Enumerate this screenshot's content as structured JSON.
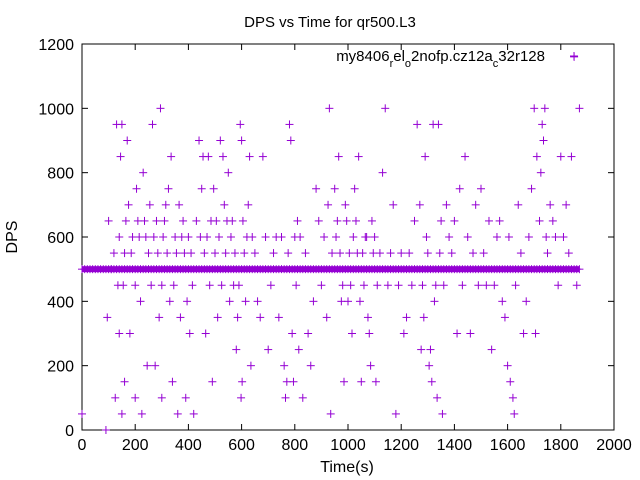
{
  "chart_data": {
    "type": "scatter",
    "title": "DPS vs Time for qr500.L3",
    "xlabel": "Time(s)",
    "ylabel": "DPS",
    "xlim": [
      0,
      2000
    ],
    "ylim": [
      0,
      1200
    ],
    "xticks": [
      0,
      200,
      400,
      600,
      800,
      1000,
      1200,
      1400,
      1600,
      1800,
      2000
    ],
    "yticks": [
      0,
      200,
      400,
      600,
      800,
      1000,
      1200
    ],
    "grid": false,
    "legend_position": "top-right",
    "marker": "plus",
    "series": [
      {
        "name_parts": [
          {
            "text": "my8406",
            "sub": false
          },
          {
            "text": "r",
            "sub": true
          },
          {
            "text": "el",
            "sub": false
          },
          {
            "text": "o",
            "sub": true
          },
          {
            "text": "2nofp.cz12a",
            "sub": false
          },
          {
            "text": "c",
            "sub": true
          },
          {
            "text": "32r128",
            "sub": false
          }
        ],
        "color": "#9400d3",
        "baseline": {
          "x_start": 0,
          "x_end": 1870,
          "y": 500
        },
        "points": [
          [
            0,
            50
          ],
          [
            90,
            0
          ],
          [
            95,
            350
          ],
          [
            100,
            650
          ],
          [
            110,
            500
          ],
          [
            120,
            550
          ],
          [
            125,
            100
          ],
          [
            130,
            950
          ],
          [
            135,
            450
          ],
          [
            140,
            300
          ],
          [
            140,
            600
          ],
          [
            145,
            850
          ],
          [
            150,
            950
          ],
          [
            150,
            50
          ],
          [
            155,
            450
          ],
          [
            160,
            550
          ],
          [
            160,
            150
          ],
          [
            165,
            650
          ],
          [
            170,
            900
          ],
          [
            175,
            700
          ],
          [
            180,
            300
          ],
          [
            185,
            550
          ],
          [
            190,
            600
          ],
          [
            200,
            450
          ],
          [
            200,
            100
          ],
          [
            205,
            750
          ],
          [
            210,
            650
          ],
          [
            215,
            600
          ],
          [
            220,
            400
          ],
          [
            225,
            50
          ],
          [
            230,
            800
          ],
          [
            235,
            650
          ],
          [
            240,
            600
          ],
          [
            245,
            200
          ],
          [
            250,
            550
          ],
          [
            255,
            700
          ],
          [
            260,
            450
          ],
          [
            265,
            950
          ],
          [
            270,
            600
          ],
          [
            275,
            200
          ],
          [
            280,
            650
          ],
          [
            285,
            550
          ],
          [
            290,
            350
          ],
          [
            295,
            1000
          ],
          [
            300,
            450
          ],
          [
            300,
            100
          ],
          [
            305,
            600
          ],
          [
            310,
            650
          ],
          [
            315,
            700
          ],
          [
            320,
            550
          ],
          [
            325,
            750
          ],
          [
            330,
            400
          ],
          [
            335,
            850
          ],
          [
            340,
            150
          ],
          [
            345,
            450
          ],
          [
            350,
            600
          ],
          [
            355,
            550
          ],
          [
            360,
            50
          ],
          [
            365,
            700
          ],
          [
            370,
            350
          ],
          [
            375,
            600
          ],
          [
            380,
            650
          ],
          [
            385,
            550
          ],
          [
            390,
            100
          ],
          [
            395,
            400
          ],
          [
            400,
            600
          ],
          [
            405,
            300
          ],
          [
            410,
            550
          ],
          [
            415,
            450
          ],
          [
            420,
            50
          ],
          [
            430,
            650
          ],
          [
            440,
            900
          ],
          [
            445,
            600
          ],
          [
            450,
            750
          ],
          [
            455,
            850
          ],
          [
            460,
            550
          ],
          [
            465,
            300
          ],
          [
            470,
            600
          ],
          [
            475,
            850
          ],
          [
            480,
            450
          ],
          [
            485,
            650
          ],
          [
            490,
            150
          ],
          [
            495,
            750
          ],
          [
            500,
            550
          ],
          [
            505,
            650
          ],
          [
            510,
            350
          ],
          [
            515,
            600
          ],
          [
            520,
            900
          ],
          [
            525,
            450
          ],
          [
            530,
            850
          ],
          [
            535,
            700
          ],
          [
            540,
            550
          ],
          [
            545,
            650
          ],
          [
            550,
            800
          ],
          [
            555,
            400
          ],
          [
            560,
            600
          ],
          [
            565,
            650
          ],
          [
            570,
            450
          ],
          [
            575,
            550
          ],
          [
            580,
            250
          ],
          [
            585,
            350
          ],
          [
            590,
            450
          ],
          [
            595,
            950
          ],
          [
            598,
            100
          ],
          [
            600,
            900
          ],
          [
            602,
            150
          ],
          [
            605,
            650
          ],
          [
            610,
            550
          ],
          [
            615,
            400
          ],
          [
            620,
            600
          ],
          [
            625,
            700
          ],
          [
            630,
            850
          ],
          [
            635,
            200
          ],
          [
            640,
            600
          ],
          [
            650,
            550
          ],
          [
            660,
            400
          ],
          [
            670,
            350
          ],
          [
            680,
            850
          ],
          [
            690,
            600
          ],
          [
            700,
            250
          ],
          [
            710,
            450
          ],
          [
            720,
            550
          ],
          [
            730,
            600
          ],
          [
            740,
            350
          ],
          [
            750,
            600
          ],
          [
            760,
            200
          ],
          [
            765,
            100
          ],
          [
            770,
            150
          ],
          [
            775,
            550
          ],
          [
            780,
            950
          ],
          [
            785,
            900
          ],
          [
            790,
            300
          ],
          [
            795,
            150
          ],
          [
            800,
            600
          ],
          [
            805,
            450
          ],
          [
            810,
            650
          ],
          [
            815,
            250
          ],
          [
            820,
            600
          ],
          [
            830,
            100
          ],
          [
            840,
            550
          ],
          [
            850,
            300
          ],
          [
            860,
            200
          ],
          [
            870,
            400
          ],
          [
            880,
            750
          ],
          [
            890,
            650
          ],
          [
            900,
            450
          ],
          [
            910,
            600
          ],
          [
            920,
            350
          ],
          [
            925,
            700
          ],
          [
            930,
            1000
          ],
          [
            935,
            50
          ],
          [
            940,
            550
          ],
          [
            950,
            750
          ],
          [
            955,
            600
          ],
          [
            960,
            650
          ],
          [
            965,
            850
          ],
          [
            970,
            550
          ],
          [
            975,
            400
          ],
          [
            980,
            450
          ],
          [
            985,
            150
          ],
          [
            990,
            700
          ],
          [
            995,
            650
          ],
          [
            1000,
            400
          ],
          [
            1005,
            550
          ],
          [
            1010,
            450
          ],
          [
            1015,
            300
          ],
          [
            1020,
            600
          ],
          [
            1025,
            750
          ],
          [
            1030,
            650
          ],
          [
            1035,
            550
          ],
          [
            1040,
            850
          ],
          [
            1045,
            400
          ],
          [
            1050,
            150
          ],
          [
            1055,
            550
          ],
          [
            1060,
            450
          ],
          [
            1065,
            600
          ],
          [
            1070,
            600
          ],
          [
            1075,
            350
          ],
          [
            1080,
            300
          ],
          [
            1085,
            200
          ],
          [
            1090,
            650
          ],
          [
            1095,
            550
          ],
          [
            1100,
            600
          ],
          [
            1105,
            150
          ],
          [
            1110,
            450
          ],
          [
            1120,
            550
          ],
          [
            1130,
            800
          ],
          [
            1140,
            1000
          ],
          [
            1150,
            450
          ],
          [
            1160,
            550
          ],
          [
            1170,
            700
          ],
          [
            1180,
            50
          ],
          [
            1190,
            450
          ],
          [
            1200,
            550
          ],
          [
            1210,
            300
          ],
          [
            1220,
            350
          ],
          [
            1230,
            550
          ],
          [
            1240,
            450
          ],
          [
            1250,
            650
          ],
          [
            1260,
            950
          ],
          [
            1270,
            700
          ],
          [
            1275,
            250
          ],
          [
            1280,
            450
          ],
          [
            1285,
            350
          ],
          [
            1290,
            850
          ],
          [
            1295,
            600
          ],
          [
            1300,
            550
          ],
          [
            1305,
            200
          ],
          [
            1310,
            250
          ],
          [
            1315,
            150
          ],
          [
            1320,
            950
          ],
          [
            1325,
            400
          ],
          [
            1330,
            450
          ],
          [
            1335,
            100
          ],
          [
            1340,
            950
          ],
          [
            1345,
            550
          ],
          [
            1350,
            650
          ],
          [
            1355,
            50
          ],
          [
            1360,
            450
          ],
          [
            1370,
            700
          ],
          [
            1380,
            600
          ],
          [
            1390,
            550
          ],
          [
            1400,
            650
          ],
          [
            1410,
            300
          ],
          [
            1420,
            750
          ],
          [
            1430,
            450
          ],
          [
            1440,
            850
          ],
          [
            1450,
            600
          ],
          [
            1460,
            300
          ],
          [
            1470,
            550
          ],
          [
            1480,
            700
          ],
          [
            1490,
            450
          ],
          [
            1500,
            750
          ],
          [
            1510,
            550
          ],
          [
            1520,
            450
          ],
          [
            1530,
            650
          ],
          [
            1540,
            250
          ],
          [
            1550,
            450
          ],
          [
            1560,
            600
          ],
          [
            1570,
            650
          ],
          [
            1580,
            400
          ],
          [
            1590,
            350
          ],
          [
            1600,
            200
          ],
          [
            1605,
            600
          ],
          [
            1610,
            150
          ],
          [
            1620,
            100
          ],
          [
            1625,
            50
          ],
          [
            1630,
            450
          ],
          [
            1640,
            700
          ],
          [
            1650,
            550
          ],
          [
            1660,
            300
          ],
          [
            1670,
            400
          ],
          [
            1680,
            600
          ],
          [
            1690,
            750
          ],
          [
            1700,
            1000
          ],
          [
            1705,
            300
          ],
          [
            1710,
            850
          ],
          [
            1720,
            650
          ],
          [
            1725,
            800
          ],
          [
            1730,
            950
          ],
          [
            1735,
            900
          ],
          [
            1740,
            1000
          ],
          [
            1745,
            600
          ],
          [
            1750,
            550
          ],
          [
            1760,
            700
          ],
          [
            1770,
            650
          ],
          [
            1780,
            600
          ],
          [
            1790,
            450
          ],
          [
            1800,
            850
          ],
          [
            1810,
            600
          ],
          [
            1820,
            700
          ],
          [
            1830,
            550
          ],
          [
            1840,
            850
          ],
          [
            1850,
            1160
          ],
          [
            1860,
            450
          ],
          [
            1870,
            1000
          ]
        ]
      }
    ]
  }
}
